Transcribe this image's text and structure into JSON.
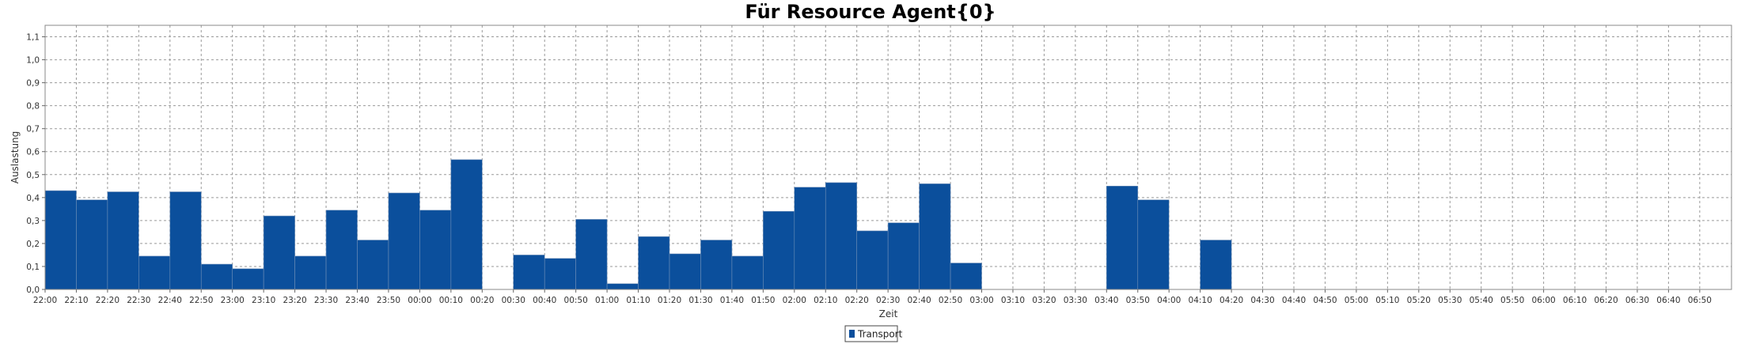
{
  "chart_data": {
    "type": "bar",
    "title": "Für Resource Agent{0}",
    "xlabel": "Zeit",
    "ylabel": "Auslastung",
    "ylim": [
      0,
      1.15
    ],
    "y_ticks": [
      "0,0",
      "0,1",
      "0,2",
      "0,3",
      "0,4",
      "0,5",
      "0,6",
      "0,7",
      "0,8",
      "0,9",
      "1,0",
      "1,1"
    ],
    "y_tick_values": [
      0,
      0.1,
      0.2,
      0.3,
      0.4,
      0.5,
      0.6,
      0.7,
      0.8,
      0.9,
      1.0,
      1.1
    ],
    "categories": [
      "22:00",
      "22:10",
      "22:20",
      "22:30",
      "22:40",
      "22:50",
      "23:00",
      "23:10",
      "23:20",
      "23:30",
      "23:40",
      "23:50",
      "00:00",
      "00:10",
      "00:20",
      "00:30",
      "00:40",
      "00:50",
      "01:00",
      "01:10",
      "01:20",
      "01:30",
      "01:40",
      "01:50",
      "02:00",
      "02:10",
      "02:20",
      "02:30",
      "02:40",
      "02:50",
      "03:00",
      "03:10",
      "03:20",
      "03:30",
      "03:40",
      "03:50",
      "04:00",
      "04:10",
      "04:20",
      "04:30",
      "04:40",
      "04:50",
      "05:00",
      "05:10",
      "05:20",
      "05:30",
      "05:40",
      "05:50",
      "06:00",
      "06:10",
      "06:20",
      "06:30",
      "06:40",
      "06:50"
    ],
    "grid": true,
    "legend_position": "bottom-center",
    "series": [
      {
        "name": "Transport",
        "color": "#0b4f9c",
        "values": [
          0.43,
          0.39,
          0.425,
          0.145,
          0.425,
          0.11,
          0.09,
          0.32,
          0.145,
          0.345,
          0.215,
          0.42,
          0.345,
          0.565,
          0,
          0.15,
          0.135,
          0.305,
          0.025,
          0.23,
          0.155,
          0.215,
          0.145,
          0.34,
          0.445,
          0.465,
          0.255,
          0.29,
          0.46,
          0.115,
          0,
          0,
          0,
          0,
          0.45,
          0.39,
          0,
          0.215,
          0,
          0,
          0,
          0,
          0,
          0,
          0,
          0,
          0,
          0,
          0,
          0,
          0,
          0,
          0,
          0
        ]
      }
    ]
  }
}
